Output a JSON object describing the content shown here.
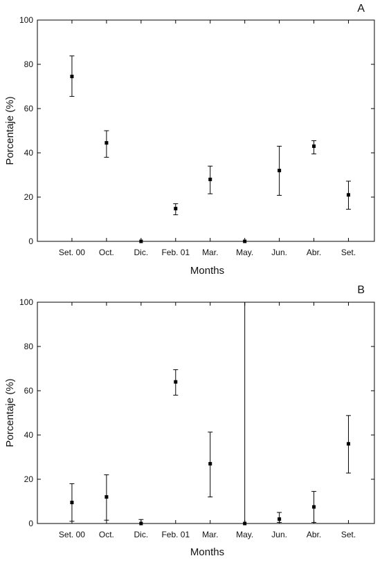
{
  "chart_data": [
    {
      "type": "scatter",
      "panel_label": "A",
      "xlabel": "Months",
      "ylabel": "Porcentaje (%)",
      "ylim": [
        0,
        100
      ],
      "yticks": [
        0,
        20,
        40,
        60,
        80,
        100
      ],
      "categories": [
        "Set. 00",
        "Oct.",
        "Dic.",
        "Feb. 01",
        "Mar.",
        "May.",
        "Jun.",
        "Abr.",
        "Set."
      ],
      "series": [
        {
          "values": [
            74.5,
            44.5,
            0,
            14.8,
            28,
            0,
            32,
            43,
            21
          ],
          "err_low": [
            65.5,
            38,
            0,
            12,
            21.5,
            0,
            20.8,
            39.5,
            14.5
          ],
          "err_high": [
            83.8,
            50,
            0,
            17,
            34,
            0,
            43,
            45.5,
            27.2
          ]
        }
      ],
      "grid": false
    },
    {
      "type": "scatter",
      "panel_label": "B",
      "xlabel": "Months",
      "ylabel": "Porcentaje (%)",
      "ylim": [
        0,
        100
      ],
      "yticks": [
        0,
        20,
        40,
        60,
        80,
        100
      ],
      "categories": [
        "Set. 00",
        "Oct.",
        "Dic.",
        "Feb. 01",
        "Mar.",
        "May.",
        "Jun.",
        "Abr.",
        "Set."
      ],
      "series": [
        {
          "values": [
            9.5,
            12,
            0,
            64,
            27,
            0,
            2,
            7.5,
            36
          ],
          "err_low": [
            1,
            1.5,
            0,
            58,
            12,
            0,
            0.5,
            0.5,
            22.8
          ],
          "err_high": [
            18,
            22,
            1.8,
            69.5,
            41.3,
            100,
            5,
            14.5,
            48.8
          ]
        }
      ],
      "grid": false
    }
  ]
}
